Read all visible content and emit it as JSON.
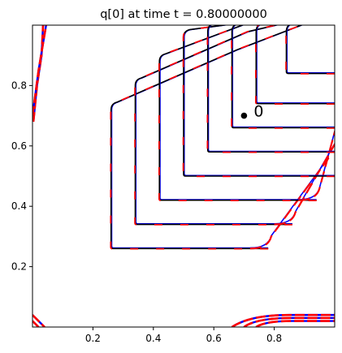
{
  "chart_data": {
    "type": "line",
    "title": "q[0] at time t =     0.80000000",
    "xlabel": "",
    "ylabel": "",
    "xlim": [
      0.0,
      1.0
    ],
    "ylim": [
      0.0,
      1.0
    ],
    "x_ticks": [
      {
        "value": 0.2,
        "label": "0.2"
      },
      {
        "value": 0.4,
        "label": "0.4"
      },
      {
        "value": 0.6,
        "label": "0.6"
      },
      {
        "value": 0.8,
        "label": "0.8"
      }
    ],
    "y_ticks": [
      {
        "value": 0.2,
        "label": "0.2"
      },
      {
        "value": 0.4,
        "label": "0.4"
      },
      {
        "value": 0.6,
        "label": "0.6"
      },
      {
        "value": 0.8,
        "label": "0.8"
      }
    ],
    "grid": false,
    "colors": {
      "exact": "#000000",
      "blue": "#0000ff",
      "red": "#ff0000"
    },
    "annotation": {
      "x": 0.7,
      "y": 0.7,
      "text": "0"
    },
    "contours": [
      {
        "corner_x": 0.26,
        "corner_y": 0.26,
        "top_y": 0.74,
        "end_x": 0.78
      },
      {
        "corner_x": 0.34,
        "corner_y": 0.34,
        "top_y": 0.82,
        "end_x": 0.86
      },
      {
        "corner_x": 0.42,
        "corner_y": 0.42,
        "top_y": 0.9,
        "end_x": 0.94
      },
      {
        "corner_x": 0.5,
        "corner_y": 0.5,
        "top_y": 0.98,
        "end_x": 1.0
      },
      {
        "corner_x": 0.58,
        "corner_y": 0.58,
        "top_y": 1.0,
        "end_x": 1.0
      },
      {
        "corner_x": 0.66,
        "corner_y": 0.66,
        "top_y": 1.0,
        "end_x": 1.0
      },
      {
        "corner_x": 0.74,
        "corner_y": 0.74,
        "top_y": 1.0,
        "end_x": 1.0
      },
      {
        "corner_x": 0.84,
        "corner_y": 0.84,
        "top_y": 1.0,
        "end_x": 1.0
      }
    ]
  }
}
